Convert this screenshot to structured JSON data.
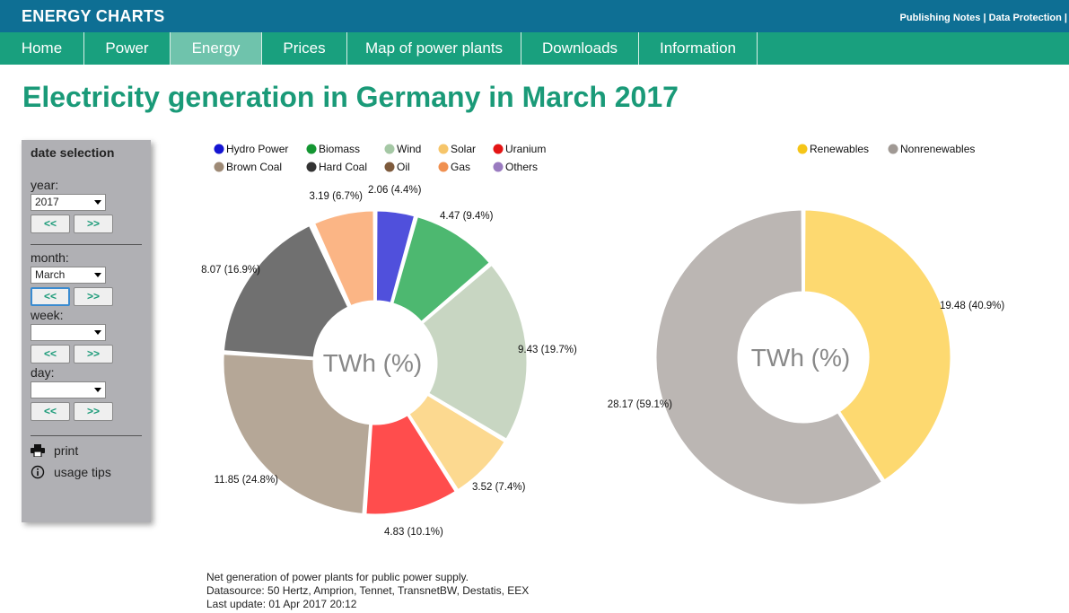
{
  "header": {
    "brand": "ENERGY CHARTS",
    "links": "Publishing Notes | Data Protection |"
  },
  "nav": {
    "items": [
      {
        "label": "Home",
        "active": false
      },
      {
        "label": "Power",
        "active": false
      },
      {
        "label": "Energy",
        "active": true
      },
      {
        "label": "Prices",
        "active": false
      },
      {
        "label": "Map of power plants",
        "active": false
      },
      {
        "label": "Downloads",
        "active": false
      },
      {
        "label": "Information",
        "active": false
      }
    ]
  },
  "page": {
    "title": "Electricity generation in Germany in March 2017"
  },
  "sidebar": {
    "title": "date selection",
    "year_label": "year:",
    "year_value": "2017",
    "month_label": "month:",
    "month_value": "March",
    "week_label": "week:",
    "week_value": "",
    "day_label": "day:",
    "day_value": "",
    "prev_label": "<<",
    "next_label": ">>",
    "print_label": "print",
    "tips_label": "usage tips"
  },
  "footer": {
    "line1": "Net generation of power plants for public power supply.",
    "line2": "Datasource: 50 Hertz, Amprion, Tennet, TransnetBW, Destatis, EEX",
    "line3": "Last update: 01 Apr 2017 20:12"
  },
  "chart_data": [
    {
      "type": "pie",
      "variant": "donut",
      "center_label": "TWh (%)",
      "legend": [
        {
          "name": "Hydro Power",
          "color": "#1414d2"
        },
        {
          "name": "Biomass",
          "color": "#149632"
        },
        {
          "name": "Wind",
          "color": "#a5c8a5"
        },
        {
          "name": "Solar",
          "color": "#f6c56a"
        },
        {
          "name": "Uranium",
          "color": "#e41414"
        },
        {
          "name": "Brown Coal",
          "color": "#9e8a76"
        },
        {
          "name": "Hard Coal",
          "color": "#333333"
        },
        {
          "name": "Oil",
          "color": "#7d5a3c"
        },
        {
          "name": "Gas",
          "color": "#f09050"
        },
        {
          "name": "Others",
          "color": "#9a7bc0"
        }
      ],
      "slices": [
        {
          "name": "Hydro Power",
          "value": 2.06,
          "label": "2.06 (4.4%)",
          "color": "#5050dc"
        },
        {
          "name": "Biomass",
          "value": 4.47,
          "label": "4.47 (9.4%)",
          "color": "#4db870"
        },
        {
          "name": "Wind",
          "value": 9.43,
          "label": "9.43 (19.7%)",
          "color": "#c8d6c2"
        },
        {
          "name": "Solar",
          "value": 3.52,
          "label": "3.52 (7.4%)",
          "color": "#fcd990"
        },
        {
          "name": "Uranium",
          "value": 4.83,
          "label": "4.83 (10.1%)",
          "color": "#ff4d4d"
        },
        {
          "name": "Brown Coal",
          "value": 11.85,
          "label": "11.85 (24.8%)",
          "color": "#b5a797"
        },
        {
          "name": "Hard Coal",
          "value": 8.07,
          "label": "8.07 (16.9%)",
          "color": "#707070"
        },
        {
          "name": "Oil",
          "value": 0.12,
          "label": "",
          "color": "#a08a74"
        },
        {
          "name": "Gas",
          "value": 3.19,
          "label": "3.19 (6.7%)",
          "color": "#fbb585"
        }
      ]
    },
    {
      "type": "pie",
      "variant": "donut",
      "center_label": "TWh (%)",
      "legend": [
        {
          "name": "Renewables",
          "color": "#f5c518"
        },
        {
          "name": "Nonrenewables",
          "color": "#a09994"
        }
      ],
      "slices": [
        {
          "name": "Renewables",
          "value": 19.48,
          "label": "19.48 (40.9%)",
          "color": "#fdd970"
        },
        {
          "name": "Nonrenewables",
          "value": 28.17,
          "label": "28.17 (59.1%)",
          "color": "#bbb6b3"
        }
      ]
    }
  ]
}
